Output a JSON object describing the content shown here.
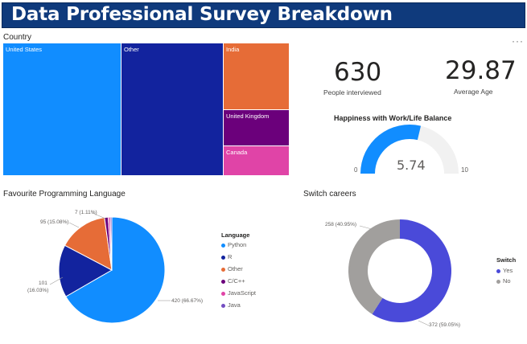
{
  "header": {
    "title": "Data Professional Survey Breakdown"
  },
  "country_chart": {
    "title": "Country",
    "tiles": [
      {
        "label": "United States",
        "color": "#118dff"
      },
      {
        "label": "Other",
        "color": "#12239e"
      },
      {
        "label": "India",
        "color": "#e66c37"
      },
      {
        "label": "United Kingdom",
        "color": "#6b007b"
      },
      {
        "label": "Canada",
        "color": "#e044a7"
      }
    ]
  },
  "kpis": {
    "people": {
      "value": "630",
      "label": "People interviewed"
    },
    "age": {
      "value": "29.87",
      "label": "Average Age"
    }
  },
  "happiness": {
    "title": "Happiness with Work/Life Balance",
    "min_label": "0",
    "max_label": "10",
    "value_label": "5.74",
    "min": 0,
    "max": 10,
    "value": 5.74,
    "fill_color": "#118dff",
    "track_color": "#f1f1f1"
  },
  "language_chart": {
    "title": "Favourite Programming Language",
    "legend_title": "Language",
    "slices": [
      {
        "name": "Python",
        "value": 420,
        "pct": "66.67%",
        "label": "420 (66.67%)",
        "color": "#118dff"
      },
      {
        "name": "R",
        "value": 101,
        "pct": "16.03%",
        "label_line1": "101",
        "label_line2": "(16.03%)",
        "color": "#12239e"
      },
      {
        "name": "Other",
        "value": 95,
        "pct": "15.08%",
        "label": "95 (15.08%)",
        "color": "#e66c37"
      },
      {
        "name": "C/C++",
        "value": 7,
        "pct": "1.11%",
        "label": "7 (1.11%)",
        "color": "#6b007b"
      },
      {
        "name": "JavaScript",
        "value": 4,
        "color": "#e044a7"
      },
      {
        "name": "Java",
        "value": 3,
        "color": "#744ec2"
      }
    ]
  },
  "switch_chart": {
    "title": "Switch careers",
    "legend_title": "Switch",
    "slices": [
      {
        "name": "Yes",
        "value": 372,
        "label": "372 (59.05%)",
        "color": "#4a4ad9"
      },
      {
        "name": "No",
        "value": 258,
        "label": "258 (40.95%)",
        "color": "#a19f9d"
      }
    ]
  }
}
